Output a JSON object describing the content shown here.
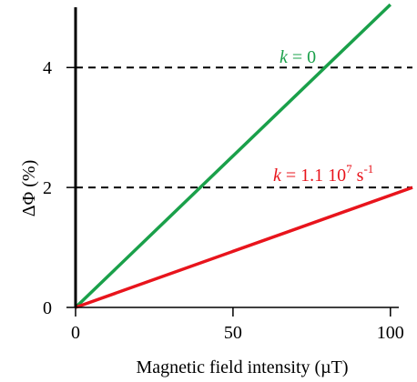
{
  "chart_data": {
    "type": "line",
    "xlabel": "Magnetic field intensity (µT)",
    "ylabel": "ΔΦ (%)",
    "xlim": [
      0,
      107
    ],
    "ylim": [
      0,
      5.05
    ],
    "x_ticks": [
      0,
      50,
      100
    ],
    "y_ticks": [
      0,
      2,
      4
    ],
    "grid": false,
    "reference_lines": [
      {
        "axis": "y",
        "value": 2,
        "style": "dashed",
        "color": "#000000"
      },
      {
        "axis": "y",
        "value": 4,
        "style": "dashed",
        "color": "#000000"
      }
    ],
    "series": [
      {
        "name": "k = 0",
        "label": {
          "var": "k",
          "rest": " = 0"
        },
        "color": "#1aa04a",
        "x": [
          0,
          100
        ],
        "y": [
          0,
          5.05
        ]
      },
      {
        "name": "k = 1.1 10^7 s^-1",
        "label": {
          "var": "k",
          "rest": " = 1.1 10",
          "sup1": "7",
          "mid": " s",
          "sup2": "-1"
        },
        "color": "#e8141c",
        "x": [
          0,
          107
        ],
        "y": [
          0,
          2.0
        ]
      }
    ]
  }
}
